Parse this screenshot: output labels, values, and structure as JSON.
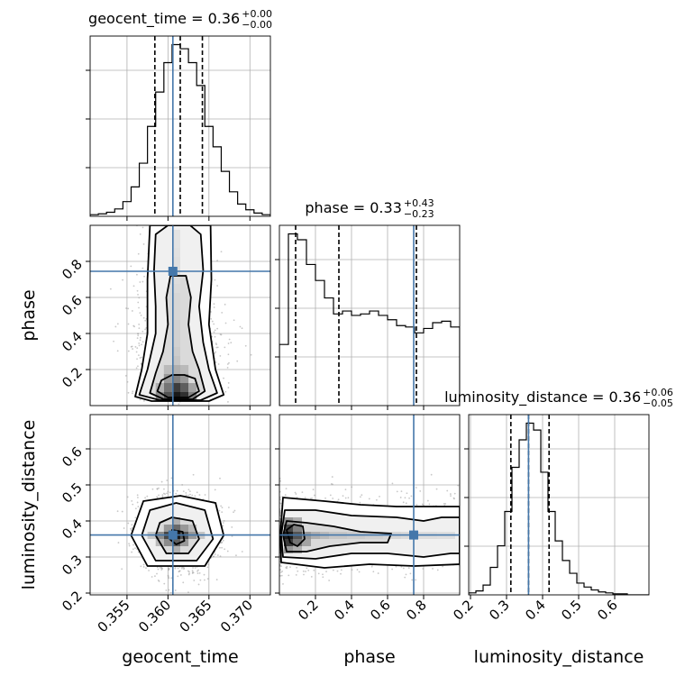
{
  "chart_data": {
    "type": "corner",
    "grid": true,
    "truth_color": "#4477aa",
    "parameters": [
      {
        "name": "geocent_time",
        "xlabel": "geocent_time",
        "range": [
          0.3505,
          0.3725
        ],
        "ticks": [
          0.355,
          0.36,
          0.365,
          0.37
        ],
        "tick_labels": [
          "0.355",
          "0.360",
          "0.365",
          "0.370"
        ],
        "truth": 0.3606,
        "title": {
          "base": "geocent_time = 0.36",
          "sup": "+0.00",
          "sub": "−0.00"
        },
        "quantiles": [
          0.3584,
          0.3615,
          0.3642
        ],
        "hist": {
          "bins": [
            0.3505,
            0.3515,
            0.3525,
            0.3535,
            0.3545,
            0.3555,
            0.3565,
            0.3575,
            0.3585,
            0.3595,
            0.3605,
            0.3615,
            0.3625,
            0.3635,
            0.3645,
            0.3655,
            0.3665,
            0.3675,
            0.3685,
            0.3695,
            0.3705,
            0.3715,
            0.3725
          ],
          "counts": [
            2,
            3,
            5,
            9,
            18,
            36,
            65,
            110,
            152,
            188,
            210,
            205,
            188,
            160,
            110,
            85,
            55,
            30,
            15,
            8,
            4,
            2
          ]
        }
      },
      {
        "name": "phase",
        "ylabel": "phase",
        "xlabel": "phase",
        "range": [
          0.0,
          1.0
        ],
        "ticks": [
          0.2,
          0.4,
          0.6,
          0.8
        ],
        "tick_labels": [
          "0.2",
          "0.4",
          "0.6",
          "0.8"
        ],
        "truth": 0.745,
        "title": {
          "base": "phase = 0.33",
          "sup": "+0.43",
          "sub": "−0.23"
        },
        "quantiles": [
          0.09,
          0.33,
          0.76
        ],
        "hist": {
          "bins": [
            0.0,
            0.05,
            0.1,
            0.15,
            0.2,
            0.25,
            0.3,
            0.35,
            0.4,
            0.45,
            0.5,
            0.55,
            0.6,
            0.65,
            0.7,
            0.75,
            0.8,
            0.85,
            0.9,
            0.95,
            1.0
          ],
          "counts": [
            42,
            118,
            114,
            97,
            86,
            74,
            63,
            65,
            62,
            63,
            65,
            62,
            59,
            55,
            54,
            50,
            53,
            57,
            58,
            54
          ]
        }
      },
      {
        "name": "luminosity_distance",
        "ylabel": "luminosity_distance",
        "xlabel": "luminosity_distance",
        "range": [
          0.195,
          0.695
        ],
        "ticks": [
          0.2,
          0.3,
          0.4,
          0.5,
          0.6
        ],
        "tick_labels": [
          "0.2",
          "0.3",
          "0.4",
          "0.5",
          "0.6"
        ],
        "truth": 0.361,
        "title": {
          "base": "luminosity_distance = 0.36",
          "sup": "+0.06",
          "sub": "−0.05"
        },
        "quantiles": [
          0.312,
          0.361,
          0.418
        ],
        "hist": {
          "bins": [
            0.195,
            0.215,
            0.235,
            0.255,
            0.275,
            0.295,
            0.315,
            0.335,
            0.355,
            0.375,
            0.395,
            0.415,
            0.435,
            0.455,
            0.475,
            0.495,
            0.515,
            0.535,
            0.555,
            0.575,
            0.595,
            0.615,
            0.635,
            0.655,
            0.675,
            0.695
          ],
          "counts": [
            2,
            4,
            10,
            28,
            50,
            85,
            130,
            158,
            175,
            168,
            125,
            85,
            55,
            35,
            22,
            12,
            8,
            5,
            3,
            2,
            1,
            1,
            0,
            0,
            0
          ]
        }
      }
    ],
    "contours": {
      "phase_vs_geocent_time": {
        "levels": [
          [
            [
              0.3587,
              0.08
            ],
            [
              0.36,
              0.045
            ],
            [
              0.3625,
              0.045
            ],
            [
              0.3638,
              0.08
            ],
            [
              0.3633,
              0.15
            ],
            [
              0.362,
              0.17
            ],
            [
              0.3605,
              0.17
            ],
            [
              0.3592,
              0.14
            ]
          ],
          [
            [
              0.3578,
              0.07
            ],
            [
              0.3595,
              0.035
            ],
            [
              0.363,
              0.035
            ],
            [
              0.3645,
              0.08
            ],
            [
              0.3638,
              0.2
            ],
            [
              0.363,
              0.3
            ],
            [
              0.3625,
              0.45
            ],
            [
              0.3628,
              0.6
            ],
            [
              0.3622,
              0.72
            ],
            [
              0.3603,
              0.72
            ],
            [
              0.3598,
              0.6
            ],
            [
              0.36,
              0.45
            ],
            [
              0.3594,
              0.3
            ],
            [
              0.3585,
              0.18
            ]
          ],
          [
            [
              0.3565,
              0.06
            ],
            [
              0.359,
              0.03
            ],
            [
              0.364,
              0.03
            ],
            [
              0.366,
              0.07
            ],
            [
              0.365,
              0.2
            ],
            [
              0.3643,
              0.35
            ],
            [
              0.3638,
              0.55
            ],
            [
              0.3643,
              0.75
            ],
            [
              0.364,
              0.95
            ],
            [
              0.3627,
              1.0
            ],
            [
              0.36,
              1.0
            ],
            [
              0.3585,
              0.95
            ],
            [
              0.3583,
              0.75
            ],
            [
              0.3585,
              0.55
            ],
            [
              0.3585,
              0.4
            ],
            [
              0.3575,
              0.2
            ]
          ],
          [
            [
              0.356,
              0.05
            ],
            [
              0.358,
              0.025
            ],
            [
              0.365,
              0.025
            ],
            [
              0.3668,
              0.06
            ],
            [
              0.3658,
              0.2
            ],
            [
              0.365,
              0.45
            ],
            [
              0.3653,
              0.7
            ],
            [
              0.3652,
              1.0
            ],
            [
              0.3578,
              1.0
            ],
            [
              0.3575,
              0.7
            ],
            [
              0.3575,
              0.4
            ],
            [
              0.3568,
              0.2
            ]
          ]
        ],
        "density_cells": [
          [
            0.361,
            0.05,
            1.0
          ],
          [
            0.362,
            0.05,
            0.9
          ],
          [
            0.36,
            0.05,
            0.75
          ],
          [
            0.363,
            0.05,
            0.55
          ],
          [
            0.359,
            0.05,
            0.5
          ],
          [
            0.361,
            0.1,
            0.85
          ],
          [
            0.362,
            0.1,
            0.7
          ],
          [
            0.36,
            0.1,
            0.6
          ],
          [
            0.363,
            0.1,
            0.4
          ],
          [
            0.359,
            0.1,
            0.35
          ],
          [
            0.361,
            0.15,
            0.55
          ],
          [
            0.362,
            0.15,
            0.45
          ],
          [
            0.36,
            0.15,
            0.45
          ],
          [
            0.361,
            0.2,
            0.35
          ],
          [
            0.36,
            0.2,
            0.3
          ],
          [
            0.362,
            0.2,
            0.3
          ],
          [
            0.361,
            0.25,
            0.25
          ],
          [
            0.361,
            0.3,
            0.22
          ],
          [
            0.361,
            0.35,
            0.2
          ],
          [
            0.361,
            0.4,
            0.2
          ],
          [
            0.361,
            0.45,
            0.2
          ],
          [
            0.361,
            0.5,
            0.18
          ],
          [
            0.361,
            0.55,
            0.18
          ],
          [
            0.361,
            0.6,
            0.18
          ],
          [
            0.361,
            0.65,
            0.16
          ],
          [
            0.361,
            0.7,
            0.15
          ],
          [
            0.361,
            0.75,
            0.14
          ],
          [
            0.361,
            0.8,
            0.14
          ],
          [
            0.361,
            0.85,
            0.13
          ],
          [
            0.361,
            0.9,
            0.12
          ],
          [
            0.361,
            0.95,
            0.12
          ]
        ]
      },
      "luminosity_distance_vs_geocent_time": {
        "levels": [
          [
            [
              0.3602,
              0.35
            ],
            [
              0.361,
              0.335
            ],
            [
              0.362,
              0.345
            ],
            [
              0.3618,
              0.37
            ],
            [
              0.3605,
              0.375
            ]
          ],
          [
            [
              0.3585,
              0.36
            ],
            [
              0.3598,
              0.31
            ],
            [
              0.3625,
              0.31
            ],
            [
              0.3638,
              0.35
            ],
            [
              0.363,
              0.4
            ],
            [
              0.3605,
              0.41
            ],
            [
              0.359,
              0.395
            ]
          ],
          [
            [
              0.3568,
              0.36
            ],
            [
              0.3585,
              0.29
            ],
            [
              0.3635,
              0.29
            ],
            [
              0.3655,
              0.35
            ],
            [
              0.3645,
              0.43
            ],
            [
              0.361,
              0.45
            ],
            [
              0.3578,
              0.43
            ]
          ],
          [
            [
              0.3555,
              0.36
            ],
            [
              0.3575,
              0.275
            ],
            [
              0.3645,
              0.275
            ],
            [
              0.3668,
              0.36
            ],
            [
              0.3658,
              0.45
            ],
            [
              0.3615,
              0.47
            ],
            [
              0.357,
              0.455
            ]
          ]
        ],
        "density_cells": [
          [
            0.361,
            0.36,
            1.0
          ],
          [
            0.36,
            0.36,
            0.8
          ],
          [
            0.362,
            0.36,
            0.75
          ],
          [
            0.361,
            0.34,
            0.7
          ],
          [
            0.361,
            0.38,
            0.65
          ],
          [
            0.359,
            0.36,
            0.5
          ],
          [
            0.363,
            0.36,
            0.45
          ],
          [
            0.36,
            0.34,
            0.5
          ],
          [
            0.362,
            0.38,
            0.45
          ],
          [
            0.36,
            0.38,
            0.45
          ],
          [
            0.362,
            0.34,
            0.45
          ],
          [
            0.361,
            0.32,
            0.35
          ],
          [
            0.361,
            0.4,
            0.35
          ],
          [
            0.359,
            0.34,
            0.3
          ],
          [
            0.363,
            0.38,
            0.3
          ],
          [
            0.358,
            0.36,
            0.25
          ],
          [
            0.364,
            0.36,
            0.25
          ]
        ]
      },
      "luminosity_distance_vs_phase": {
        "levels": [
          [
            [
              0.04,
              0.375
            ],
            [
              0.06,
              0.34
            ],
            [
              0.1,
              0.33
            ],
            [
              0.14,
              0.35
            ],
            [
              0.13,
              0.385
            ],
            [
              0.08,
              0.39
            ]
          ],
          [
            [
              0.02,
              0.36
            ],
            [
              0.04,
              0.315
            ],
            [
              0.15,
              0.315
            ],
            [
              0.28,
              0.33
            ],
            [
              0.45,
              0.34
            ],
            [
              0.6,
              0.34
            ],
            [
              0.62,
              0.365
            ],
            [
              0.45,
              0.37
            ],
            [
              0.3,
              0.385
            ],
            [
              0.15,
              0.395
            ],
            [
              0.04,
              0.4
            ]
          ],
          [
            [
              0.01,
              0.36
            ],
            [
              0.02,
              0.3
            ],
            [
              0.2,
              0.295
            ],
            [
              0.4,
              0.31
            ],
            [
              0.6,
              0.31
            ],
            [
              0.8,
              0.3
            ],
            [
              0.95,
              0.31
            ],
            [
              1.0,
              0.31
            ],
            [
              1.0,
              0.41
            ],
            [
              0.9,
              0.41
            ],
            [
              0.8,
              0.4
            ],
            [
              0.65,
              0.41
            ],
            [
              0.4,
              0.415
            ],
            [
              0.2,
              0.43
            ],
            [
              0.03,
              0.43
            ]
          ],
          [
            [
              0.005,
              0.36
            ],
            [
              0.01,
              0.285
            ],
            [
              0.25,
              0.27
            ],
            [
              0.5,
              0.28
            ],
            [
              0.75,
              0.275
            ],
            [
              1.0,
              0.28
            ],
            [
              1.0,
              0.44
            ],
            [
              0.85,
              0.44
            ],
            [
              0.65,
              0.44
            ],
            [
              0.45,
              0.445
            ],
            [
              0.25,
              0.455
            ],
            [
              0.02,
              0.465
            ]
          ]
        ],
        "density_cells": [
          [
            0.05,
            0.36,
            1.0
          ],
          [
            0.05,
            0.34,
            0.85
          ],
          [
            0.05,
            0.38,
            0.8
          ],
          [
            0.1,
            0.36,
            0.75
          ],
          [
            0.1,
            0.34,
            0.6
          ],
          [
            0.1,
            0.38,
            0.55
          ],
          [
            0.15,
            0.36,
            0.45
          ],
          [
            0.15,
            0.34,
            0.4
          ],
          [
            0.2,
            0.36,
            0.35
          ],
          [
            0.25,
            0.36,
            0.3
          ],
          [
            0.3,
            0.36,
            0.25
          ],
          [
            0.35,
            0.36,
            0.25
          ],
          [
            0.4,
            0.36,
            0.22
          ],
          [
            0.45,
            0.36,
            0.22
          ],
          [
            0.5,
            0.36,
            0.2
          ],
          [
            0.55,
            0.36,
            0.2
          ],
          [
            0.6,
            0.36,
            0.18
          ],
          [
            0.65,
            0.36,
            0.18
          ],
          [
            0.7,
            0.36,
            0.16
          ],
          [
            0.75,
            0.36,
            0.16
          ],
          [
            0.8,
            0.36,
            0.15
          ],
          [
            0.85,
            0.36,
            0.15
          ],
          [
            0.9,
            0.36,
            0.14
          ],
          [
            0.95,
            0.36,
            0.14
          ],
          [
            0.05,
            0.32,
            0.45
          ],
          [
            0.05,
            0.4,
            0.45
          ],
          [
            0.1,
            0.32,
            0.35
          ],
          [
            0.1,
            0.4,
            0.35
          ]
        ]
      }
    }
  }
}
